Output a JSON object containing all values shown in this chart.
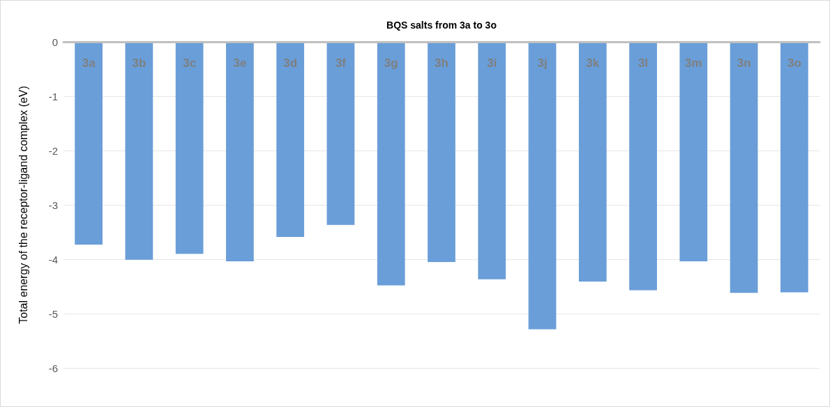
{
  "chart_data": {
    "type": "bar",
    "xlabel": "BQS salts from 3a to 3o",
    "ylabel": "Total energy of the receptor-ligand complex (eV)",
    "categories": [
      "3a",
      "3b",
      "3c",
      "3e",
      "3d",
      "3f",
      "3g",
      "3h",
      "3i",
      "3j",
      "3k",
      "3l",
      "3m",
      "3n",
      "3o"
    ],
    "values": [
      -3.73,
      -4.01,
      -3.9,
      -4.04,
      -3.59,
      -3.37,
      -4.48,
      -4.05,
      -4.37,
      -5.29,
      -4.41,
      -4.57,
      -4.04,
      -4.62,
      -4.61
    ],
    "color": "#6a9ed8",
    "ylim": [
      -6,
      0
    ],
    "yticks": [
      0,
      -1,
      -2,
      -3,
      -4,
      -5,
      -6
    ],
    "grid": "y"
  }
}
